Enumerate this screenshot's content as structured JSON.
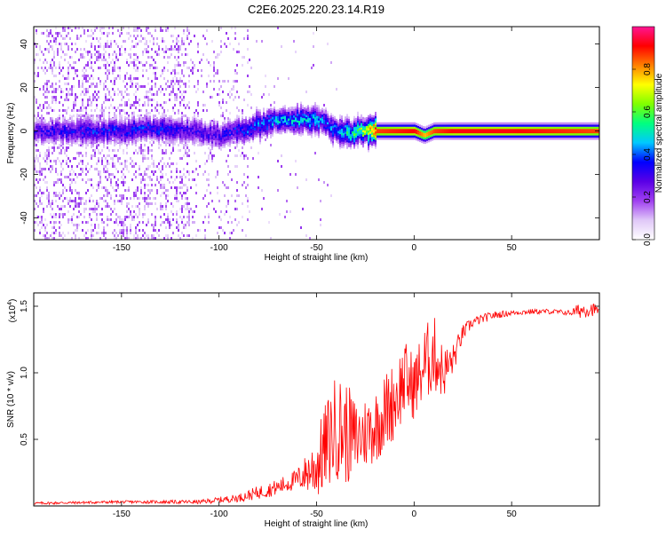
{
  "title": "C2E6.2025.220.23.14.R19",
  "colorbar_label": "Normalized spectral amplitude",
  "colorbar_ticks": [
    "0.0",
    "0.2",
    "0.4",
    "0.6",
    "0.8"
  ],
  "colormap": [
    "#ffffff",
    "#e0c8f8",
    "#a040f0",
    "#5a00e6",
    "#0000ff",
    "#00c8ff",
    "#00ff80",
    "#7fff00",
    "#ffff00",
    "#ff8000",
    "#ff0000",
    "#ff1493"
  ],
  "chart_data": [
    {
      "type": "heatmap",
      "title": "C2E6.2025.220.23.14.R19",
      "xlabel": "Height of straight line (km)",
      "ylabel": "Frequency (Hz)",
      "xlim": [
        -195,
        95
      ],
      "ylim": [
        -50,
        48
      ],
      "xticks": [
        "-150",
        "-100",
        "-50",
        "0",
        "50"
      ],
      "yticks": [
        "-40",
        "-20",
        "0",
        "20",
        "40"
      ],
      "colorbar_range": [
        0.0,
        1.0
      ],
      "ridge": {
        "x": [
          -195,
          -160,
          -130,
          -115,
          -100,
          -90,
          -80,
          -70,
          -60,
          -50,
          -45,
          -40,
          -35,
          -30,
          -25,
          -20,
          0,
          5,
          10,
          20,
          50,
          90
        ],
        "freq": [
          0,
          0,
          1,
          0,
          -2,
          0,
          3,
          5,
          5,
          5,
          3,
          0,
          -1,
          0,
          0,
          0,
          0,
          -2,
          0,
          0,
          0,
          0
        ],
        "amplitude": [
          0.3,
          0.35,
          0.35,
          0.3,
          0.3,
          0.35,
          0.4,
          0.45,
          0.45,
          0.45,
          0.4,
          0.4,
          0.5,
          0.55,
          0.65,
          0.9,
          0.95,
          0.8,
          0.9,
          0.95,
          0.95,
          0.9
        ]
      }
    },
    {
      "type": "line",
      "xlabel": "Height of straight line (km)",
      "ylabel": "SNR (10 * v/v)",
      "y_multiplier": "(x10",
      "y_multiplier_exp": "4",
      "xlim": [
        -195,
        95
      ],
      "ylim": [
        0,
        1.6
      ],
      "xticks": [
        "-150",
        "-100",
        "-50",
        "0",
        "50"
      ],
      "yticks": [
        "0.5",
        "1.0",
        "1.5"
      ],
      "color": "#ff0000",
      "series": [
        {
          "x": [
            -195,
            -150,
            -110,
            -90,
            -80,
            -70,
            -60,
            -55,
            -50,
            -45,
            -40,
            -35,
            -30,
            -25,
            -20,
            -15,
            -10,
            -5,
            0,
            5,
            10,
            15,
            20,
            25,
            30,
            40,
            50,
            60,
            70,
            80,
            85,
            90,
            95
          ],
          "values": [
            0.02,
            0.03,
            0.03,
            0.06,
            0.1,
            0.14,
            0.2,
            0.25,
            0.3,
            0.45,
            0.6,
            0.55,
            0.5,
            0.55,
            0.6,
            0.7,
            0.8,
            0.95,
            0.9,
            1.05,
            1.15,
            1.0,
            1.1,
            1.3,
            1.38,
            1.43,
            1.45,
            1.46,
            1.46,
            1.45,
            1.47,
            1.48,
            1.47
          ],
          "noise_amplitude": [
            0.01,
            0.01,
            0.015,
            0.03,
            0.05,
            0.06,
            0.08,
            0.15,
            0.25,
            0.35,
            0.4,
            0.4,
            0.3,
            0.28,
            0.28,
            0.3,
            0.3,
            0.3,
            0.25,
            0.3,
            0.3,
            0.2,
            0.12,
            0.06,
            0.04,
            0.03,
            0.02,
            0.02,
            0.02,
            0.02,
            0.06,
            0.06,
            0.03
          ]
        }
      ]
    }
  ]
}
